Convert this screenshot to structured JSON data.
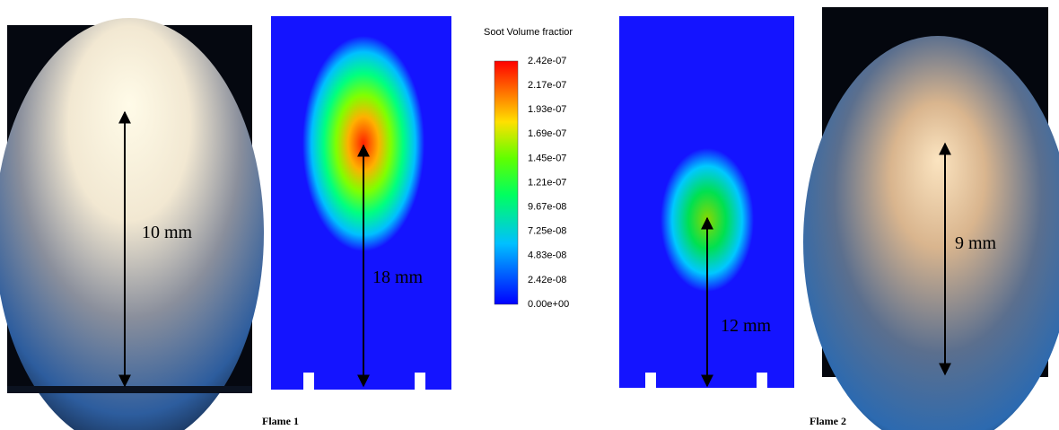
{
  "colorbar": {
    "title": "Soot Volume fractior",
    "labels": [
      "2.42e-07",
      "2.17e-07",
      "1.93e-07",
      "1.69e-07",
      "1.45e-07",
      "1.21e-07",
      "9.67e-08",
      "7.25e-08",
      "4.83e-08",
      "2.42e-08",
      "0.00e+00"
    ]
  },
  "panels": {
    "photo_1": {
      "label": "10 mm"
    },
    "simulation_1": {
      "label": "18 mm"
    },
    "simulation_2": {
      "label": "12 mm"
    },
    "photo_2": {
      "label": "9 mm"
    }
  },
  "captions": [
    "Flame 1",
    "Flame 2"
  ]
}
